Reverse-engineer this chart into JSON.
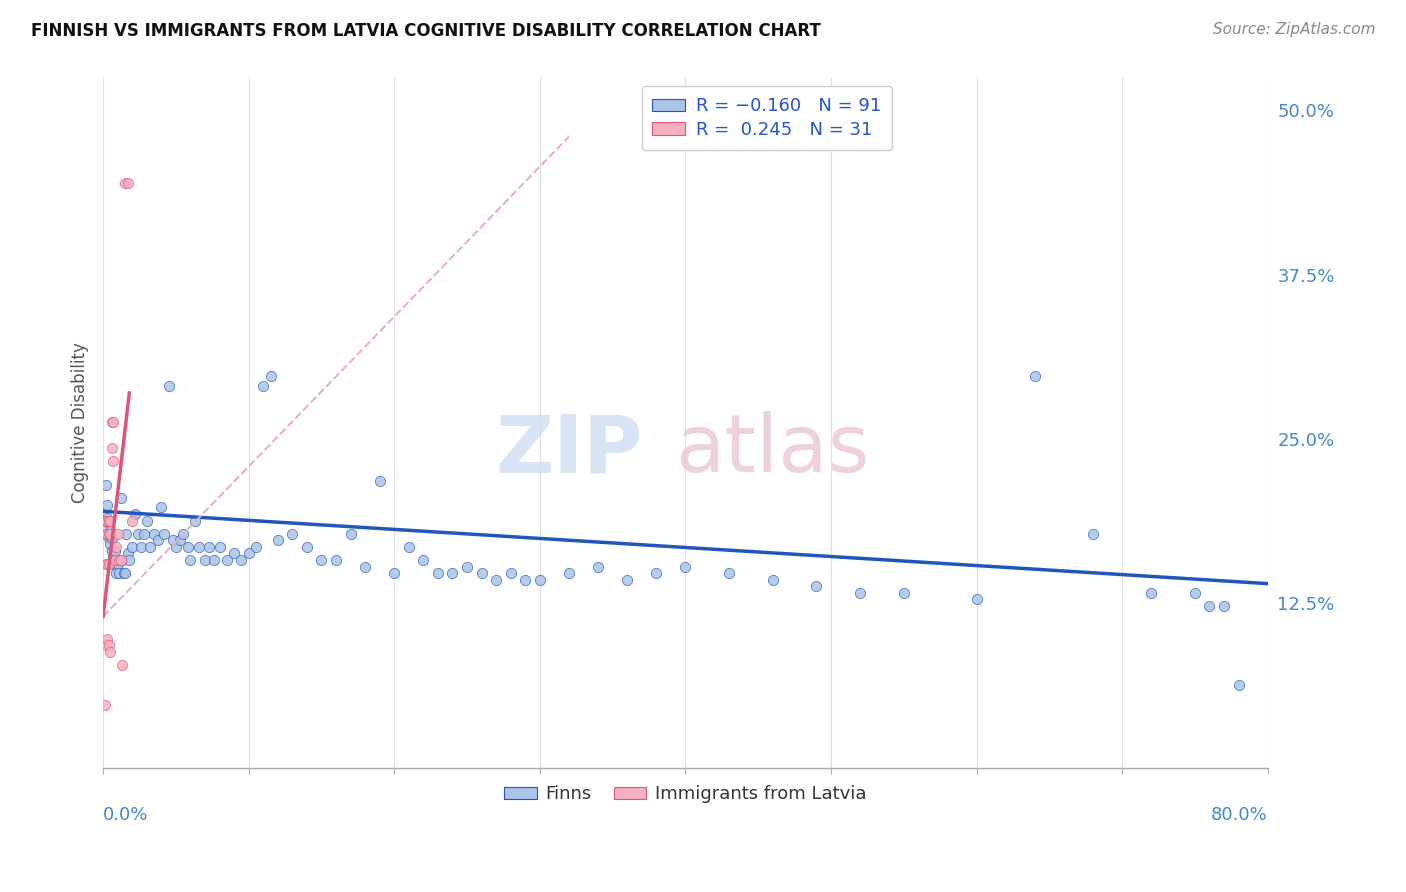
{
  "title": "FINNISH VS IMMIGRANTS FROM LATVIA COGNITIVE DISABILITY CORRELATION CHART",
  "source": "Source: ZipAtlas.com",
  "ylabel": "Cognitive Disability",
  "right_yticks": [
    0.125,
    0.25,
    0.375,
    0.5
  ],
  "right_yticklabels": [
    "12.5%",
    "25.0%",
    "37.5%",
    "50.0%"
  ],
  "xlim": [
    0,
    0.8
  ],
  "ylim": [
    0,
    0.525
  ],
  "finns_R": -0.16,
  "finns_N": 91,
  "latvia_R": 0.245,
  "latvia_N": 31,
  "finns_color": "#aac4e8",
  "latvia_color": "#f4b0c0",
  "trend_finns_color": "#2255bb",
  "trend_latvia_color": "#e05575",
  "trend_latvia_dash_color": "#e8b0c0",
  "finns_x": [
    0.002,
    0.003,
    0.003,
    0.004,
    0.004,
    0.005,
    0.005,
    0.006,
    0.006,
    0.007,
    0.007,
    0.008,
    0.009,
    0.009,
    0.01,
    0.011,
    0.012,
    0.013,
    0.014,
    0.015,
    0.016,
    0.017,
    0.018,
    0.02,
    0.022,
    0.024,
    0.026,
    0.028,
    0.03,
    0.032,
    0.035,
    0.038,
    0.04,
    0.042,
    0.045,
    0.048,
    0.05,
    0.053,
    0.055,
    0.058,
    0.06,
    0.063,
    0.066,
    0.07,
    0.073,
    0.076,
    0.08,
    0.085,
    0.09,
    0.095,
    0.1,
    0.105,
    0.11,
    0.115,
    0.12,
    0.13,
    0.14,
    0.15,
    0.16,
    0.17,
    0.18,
    0.19,
    0.2,
    0.21,
    0.22,
    0.23,
    0.24,
    0.25,
    0.26,
    0.27,
    0.28,
    0.29,
    0.3,
    0.32,
    0.34,
    0.36,
    0.38,
    0.4,
    0.43,
    0.46,
    0.49,
    0.52,
    0.55,
    0.6,
    0.64,
    0.68,
    0.72,
    0.75,
    0.76,
    0.77,
    0.78
  ],
  "finns_y": [
    0.215,
    0.2,
    0.19,
    0.185,
    0.175,
    0.18,
    0.17,
    0.175,
    0.165,
    0.16,
    0.155,
    0.165,
    0.155,
    0.148,
    0.155,
    0.148,
    0.205,
    0.158,
    0.148,
    0.148,
    0.178,
    0.163,
    0.158,
    0.168,
    0.193,
    0.178,
    0.168,
    0.178,
    0.188,
    0.168,
    0.178,
    0.173,
    0.198,
    0.178,
    0.29,
    0.173,
    0.168,
    0.173,
    0.178,
    0.168,
    0.158,
    0.188,
    0.168,
    0.158,
    0.168,
    0.158,
    0.168,
    0.158,
    0.163,
    0.158,
    0.163,
    0.168,
    0.29,
    0.298,
    0.173,
    0.178,
    0.168,
    0.158,
    0.158,
    0.178,
    0.153,
    0.218,
    0.148,
    0.168,
    0.158,
    0.148,
    0.148,
    0.153,
    0.148,
    0.143,
    0.148,
    0.143,
    0.143,
    0.148,
    0.153,
    0.143,
    0.148,
    0.153,
    0.148,
    0.143,
    0.138,
    0.133,
    0.133,
    0.128,
    0.298,
    0.178,
    0.133,
    0.133,
    0.123,
    0.123,
    0.063
  ],
  "latvia_x": [
    0.001,
    0.001,
    0.001,
    0.002,
    0.002,
    0.002,
    0.002,
    0.003,
    0.003,
    0.003,
    0.003,
    0.004,
    0.004,
    0.004,
    0.004,
    0.005,
    0.005,
    0.005,
    0.006,
    0.006,
    0.007,
    0.007,
    0.008,
    0.009,
    0.01,
    0.011,
    0.012,
    0.013,
    0.015,
    0.017,
    0.02
  ],
  "latvia_y": [
    0.188,
    0.178,
    0.048,
    0.188,
    0.178,
    0.155,
    0.093,
    0.188,
    0.178,
    0.155,
    0.098,
    0.188,
    0.178,
    0.155,
    0.093,
    0.188,
    0.178,
    0.088,
    0.263,
    0.243,
    0.263,
    0.233,
    0.158,
    0.168,
    0.178,
    0.158,
    0.158,
    0.078,
    0.445,
    0.445,
    0.188
  ],
  "trend_finns_start_x": 0.0,
  "trend_finns_end_x": 0.8,
  "trend_finns_start_y": 0.195,
  "trend_finns_end_y": 0.14,
  "trend_latvia_solid_start_x": 0.0,
  "trend_latvia_solid_end_x": 0.018,
  "trend_latvia_solid_start_y": 0.115,
  "trend_latvia_solid_end_y": 0.285,
  "trend_latvia_dash_start_x": 0.0,
  "trend_latvia_dash_end_x": 0.32,
  "trend_latvia_dash_start_y": 0.115,
  "trend_latvia_dash_end_y": 0.48
}
